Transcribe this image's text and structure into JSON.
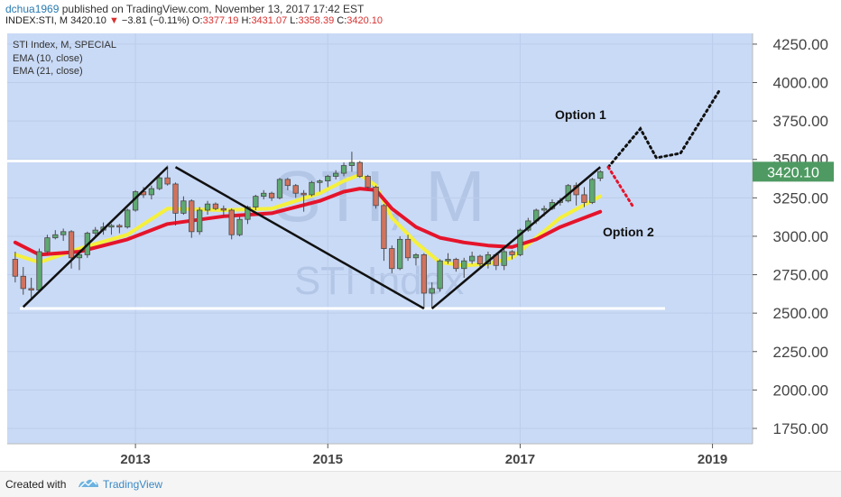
{
  "header": {
    "author": "dchua1969",
    "published": "published on TradingView.com, November 13, 2017 17:42 EST",
    "symbol": "INDEX:STI, M",
    "last": "3420.10",
    "change_arrow": "▼",
    "change": "−3.81 (−0.11%)",
    "o_label": "O:",
    "o": "3377.19",
    "h_label": "H:",
    "h": "3431.07",
    "l_label": "L:",
    "l": "3358.39",
    "c_label": "C:",
    "c": "3420.10"
  },
  "legend": [
    "STI Index, M, SPECIAL",
    "EMA (10, close)",
    "EMA (21, close)"
  ],
  "watermark": {
    "symbol": "STI, M",
    "name": "STI Index"
  },
  "price_label": "3420.10",
  "annotations": {
    "option1": "Option 1",
    "option2": "Option 2"
  },
  "footer": {
    "created": "Created with",
    "brand": "TradingView"
  },
  "colors": {
    "background": "#c9daf6",
    "up_candle": "#5fa872",
    "down_candle": "#d0735e",
    "ema10": "#f5f03c",
    "ema21": "#e5142b",
    "price_label_bg": "#4e9a62",
    "trendline": "#111111",
    "option1_path": "#111111",
    "option2_path": "#e5142b"
  },
  "chart_data": {
    "type": "candlestick",
    "timeframe": "monthly",
    "x_tick_labels": [
      "2013",
      "2015",
      "2017",
      "2019"
    ],
    "y_ticks": [
      1750,
      2000,
      2250,
      2500,
      2750,
      3000,
      3250,
      3500,
      3750,
      4000,
      4250
    ],
    "ylim": [
      1650,
      4320
    ],
    "xlim": [
      "2011-09",
      "2019-06"
    ],
    "candles": [
      {
        "t": "2011-10",
        "o": 2850,
        "h": 2900,
        "l": 2700,
        "c": 2740
      },
      {
        "t": "2011-11",
        "o": 2740,
        "h": 2800,
        "l": 2620,
        "c": 2660
      },
      {
        "t": "2011-12",
        "o": 2660,
        "h": 2730,
        "l": 2600,
        "c": 2650
      },
      {
        "t": "2012-01",
        "o": 2650,
        "h": 2920,
        "l": 2640,
        "c": 2900
      },
      {
        "t": "2012-02",
        "o": 2900,
        "h": 3010,
        "l": 2880,
        "c": 2990
      },
      {
        "t": "2012-03",
        "o": 2990,
        "h": 3040,
        "l": 2980,
        "c": 3010
      },
      {
        "t": "2012-04",
        "o": 3010,
        "h": 3050,
        "l": 2970,
        "c": 3030
      },
      {
        "t": "2012-05",
        "o": 3030,
        "h": 3040,
        "l": 2790,
        "c": 2860
      },
      {
        "t": "2012-06",
        "o": 2860,
        "h": 2900,
        "l": 2780,
        "c": 2880
      },
      {
        "t": "2012-07",
        "o": 2880,
        "h": 3030,
        "l": 2860,
        "c": 3020
      },
      {
        "t": "2012-08",
        "o": 3020,
        "h": 3060,
        "l": 2990,
        "c": 3040
      },
      {
        "t": "2012-09",
        "o": 3040,
        "h": 3090,
        "l": 3010,
        "c": 3060
      },
      {
        "t": "2012-10",
        "o": 3060,
        "h": 3080,
        "l": 3010,
        "c": 3070
      },
      {
        "t": "2012-11",
        "o": 3070,
        "h": 3080,
        "l": 3020,
        "c": 3060
      },
      {
        "t": "2012-12",
        "o": 3060,
        "h": 3180,
        "l": 3050,
        "c": 3170
      },
      {
        "t": "2013-01",
        "o": 3170,
        "h": 3300,
        "l": 3160,
        "c": 3290
      },
      {
        "t": "2013-02",
        "o": 3290,
        "h": 3320,
        "l": 3250,
        "c": 3270
      },
      {
        "t": "2013-03",
        "o": 3270,
        "h": 3330,
        "l": 3240,
        "c": 3310
      },
      {
        "t": "2013-04",
        "o": 3310,
        "h": 3390,
        "l": 3300,
        "c": 3380
      },
      {
        "t": "2013-05",
        "o": 3380,
        "h": 3460,
        "l": 3330,
        "c": 3340
      },
      {
        "t": "2013-06",
        "o": 3340,
        "h": 3350,
        "l": 3070,
        "c": 3150
      },
      {
        "t": "2013-07",
        "o": 3150,
        "h": 3260,
        "l": 3140,
        "c": 3230
      },
      {
        "t": "2013-08",
        "o": 3230,
        "h": 3240,
        "l": 2990,
        "c": 3030
      },
      {
        "t": "2013-09",
        "o": 3030,
        "h": 3190,
        "l": 3010,
        "c": 3170
      },
      {
        "t": "2013-10",
        "o": 3170,
        "h": 3230,
        "l": 3140,
        "c": 3210
      },
      {
        "t": "2013-11",
        "o": 3210,
        "h": 3220,
        "l": 3170,
        "c": 3180
      },
      {
        "t": "2013-12",
        "o": 3180,
        "h": 3200,
        "l": 3130,
        "c": 3170
      },
      {
        "t": "2014-01",
        "o": 3170,
        "h": 3180,
        "l": 2980,
        "c": 3010
      },
      {
        "t": "2014-02",
        "o": 3010,
        "h": 3130,
        "l": 3000,
        "c": 3110
      },
      {
        "t": "2014-03",
        "o": 3110,
        "h": 3200,
        "l": 3080,
        "c": 3190
      },
      {
        "t": "2014-04",
        "o": 3190,
        "h": 3270,
        "l": 3170,
        "c": 3260
      },
      {
        "t": "2014-05",
        "o": 3260,
        "h": 3300,
        "l": 3240,
        "c": 3280
      },
      {
        "t": "2014-06",
        "o": 3280,
        "h": 3290,
        "l": 3230,
        "c": 3250
      },
      {
        "t": "2014-07",
        "o": 3250,
        "h": 3380,
        "l": 3240,
        "c": 3370
      },
      {
        "t": "2014-08",
        "o": 3370,
        "h": 3380,
        "l": 3300,
        "c": 3330
      },
      {
        "t": "2014-09",
        "o": 3330,
        "h": 3340,
        "l": 3250,
        "c": 3280
      },
      {
        "t": "2014-10",
        "o": 3280,
        "h": 3300,
        "l": 3160,
        "c": 3270
      },
      {
        "t": "2014-11",
        "o": 3270,
        "h": 3360,
        "l": 3260,
        "c": 3350
      },
      {
        "t": "2014-12",
        "o": 3350,
        "h": 3370,
        "l": 3290,
        "c": 3360
      },
      {
        "t": "2015-01",
        "o": 3360,
        "h": 3400,
        "l": 3320,
        "c": 3390
      },
      {
        "t": "2015-02",
        "o": 3390,
        "h": 3430,
        "l": 3370,
        "c": 3410
      },
      {
        "t": "2015-03",
        "o": 3410,
        "h": 3480,
        "l": 3390,
        "c": 3460
      },
      {
        "t": "2015-04",
        "o": 3460,
        "h": 3550,
        "l": 3420,
        "c": 3480
      },
      {
        "t": "2015-05",
        "o": 3480,
        "h": 3490,
        "l": 3380,
        "c": 3390
      },
      {
        "t": "2015-06",
        "o": 3390,
        "h": 3400,
        "l": 3300,
        "c": 3320
      },
      {
        "t": "2015-07",
        "o": 3320,
        "h": 3330,
        "l": 3180,
        "c": 3200
      },
      {
        "t": "2015-08",
        "o": 3200,
        "h": 3210,
        "l": 2840,
        "c": 2920
      },
      {
        "t": "2015-09",
        "o": 2920,
        "h": 2940,
        "l": 2760,
        "c": 2790
      },
      {
        "t": "2015-10",
        "o": 2790,
        "h": 3000,
        "l": 2780,
        "c": 2980
      },
      {
        "t": "2015-11",
        "o": 2980,
        "h": 3010,
        "l": 2840,
        "c": 2860
      },
      {
        "t": "2015-12",
        "o": 2860,
        "h": 2890,
        "l": 2810,
        "c": 2880
      },
      {
        "t": "2016-01",
        "o": 2880,
        "h": 2890,
        "l": 2530,
        "c": 2630
      },
      {
        "t": "2016-02",
        "o": 2630,
        "h": 2700,
        "l": 2530,
        "c": 2660
      },
      {
        "t": "2016-03",
        "o": 2660,
        "h": 2850,
        "l": 2640,
        "c": 2840
      },
      {
        "t": "2016-04",
        "o": 2840,
        "h": 2890,
        "l": 2820,
        "c": 2850
      },
      {
        "t": "2016-05",
        "o": 2850,
        "h": 2860,
        "l": 2770,
        "c": 2790
      },
      {
        "t": "2016-06",
        "o": 2790,
        "h": 2860,
        "l": 2730,
        "c": 2840
      },
      {
        "t": "2016-07",
        "o": 2840,
        "h": 2900,
        "l": 2820,
        "c": 2870
      },
      {
        "t": "2016-08",
        "o": 2870,
        "h": 2880,
        "l": 2800,
        "c": 2820
      },
      {
        "t": "2016-09",
        "o": 2820,
        "h": 2900,
        "l": 2790,
        "c": 2880
      },
      {
        "t": "2016-10",
        "o": 2880,
        "h": 2890,
        "l": 2780,
        "c": 2810
      },
      {
        "t": "2016-11",
        "o": 2810,
        "h": 2920,
        "l": 2780,
        "c": 2900
      },
      {
        "t": "2016-12",
        "o": 2900,
        "h": 2910,
        "l": 2850,
        "c": 2880
      },
      {
        "t": "2017-01",
        "o": 2880,
        "h": 3050,
        "l": 2870,
        "c": 3040
      },
      {
        "t": "2017-02",
        "o": 3040,
        "h": 3120,
        "l": 3030,
        "c": 3100
      },
      {
        "t": "2017-03",
        "o": 3100,
        "h": 3180,
        "l": 3080,
        "c": 3170
      },
      {
        "t": "2017-04",
        "o": 3170,
        "h": 3200,
        "l": 3130,
        "c": 3180
      },
      {
        "t": "2017-05",
        "o": 3180,
        "h": 3240,
        "l": 3170,
        "c": 3220
      },
      {
        "t": "2017-06",
        "o": 3220,
        "h": 3250,
        "l": 3200,
        "c": 3230
      },
      {
        "t": "2017-07",
        "o": 3230,
        "h": 3340,
        "l": 3220,
        "c": 3330
      },
      {
        "t": "2017-08",
        "o": 3330,
        "h": 3350,
        "l": 3200,
        "c": 3270
      },
      {
        "t": "2017-09",
        "o": 3270,
        "h": 3320,
        "l": 3190,
        "c": 3220
      },
      {
        "t": "2017-10",
        "o": 3220,
        "h": 3380,
        "l": 3210,
        "c": 3370
      },
      {
        "t": "2017-11",
        "o": 3377.19,
        "h": 3431.07,
        "l": 3358.39,
        "c": 3420.1
      }
    ],
    "series": [
      {
        "name": "EMA (10, close)",
        "color": "#f5f03c",
        "points": [
          [
            "2011-10",
            2880
          ],
          [
            "2012-01",
            2830
          ],
          [
            "2012-06",
            2920
          ],
          [
            "2012-12",
            3010
          ],
          [
            "2013-05",
            3180
          ],
          [
            "2013-12",
            3170
          ],
          [
            "2014-06",
            3180
          ],
          [
            "2014-12",
            3280
          ],
          [
            "2015-03",
            3360
          ],
          [
            "2015-05",
            3400
          ],
          [
            "2015-07",
            3330
          ],
          [
            "2015-09",
            3120
          ],
          [
            "2015-12",
            2960
          ],
          [
            "2016-03",
            2830
          ],
          [
            "2016-06",
            2810
          ],
          [
            "2016-09",
            2820
          ],
          [
            "2016-12",
            2860
          ],
          [
            "2017-03",
            2990
          ],
          [
            "2017-06",
            3120
          ],
          [
            "2017-11",
            3260
          ]
        ]
      },
      {
        "name": "EMA (21, close)",
        "color": "#e5142b",
        "points": [
          [
            "2011-10",
            2960
          ],
          [
            "2012-01",
            2880
          ],
          [
            "2012-06",
            2900
          ],
          [
            "2012-12",
            2980
          ],
          [
            "2013-05",
            3080
          ],
          [
            "2013-12",
            3130
          ],
          [
            "2014-06",
            3150
          ],
          [
            "2014-12",
            3230
          ],
          [
            "2015-03",
            3290
          ],
          [
            "2015-05",
            3310
          ],
          [
            "2015-07",
            3300
          ],
          [
            "2015-09",
            3180
          ],
          [
            "2015-12",
            3060
          ],
          [
            "2016-03",
            2990
          ],
          [
            "2016-06",
            2960
          ],
          [
            "2016-09",
            2940
          ],
          [
            "2016-12",
            2930
          ],
          [
            "2017-03",
            2980
          ],
          [
            "2017-06",
            3060
          ],
          [
            "2017-11",
            3160
          ]
        ]
      }
    ],
    "drawings": {
      "horizontal_lines": [
        3490,
        2530
      ],
      "trendlines": [
        [
          [
            "2011-11",
            2540
          ],
          [
            "2013-05",
            3450
          ]
        ],
        [
          [
            "2013-06",
            3450
          ],
          [
            "2016-01",
            2530
          ]
        ],
        [
          [
            "2016-02",
            2530
          ],
          [
            "2017-11",
            3450
          ]
        ]
      ],
      "option1_path": [
        [
          "2017-12",
          3450
        ],
        [
          "2018-04",
          3700
        ],
        [
          "2018-06",
          3510
        ],
        [
          "2018-09",
          3540
        ],
        [
          "2019-02",
          3960
        ]
      ],
      "option2_path": [
        [
          "2017-12",
          3450
        ],
        [
          "2018-03",
          3200
        ]
      ]
    }
  }
}
